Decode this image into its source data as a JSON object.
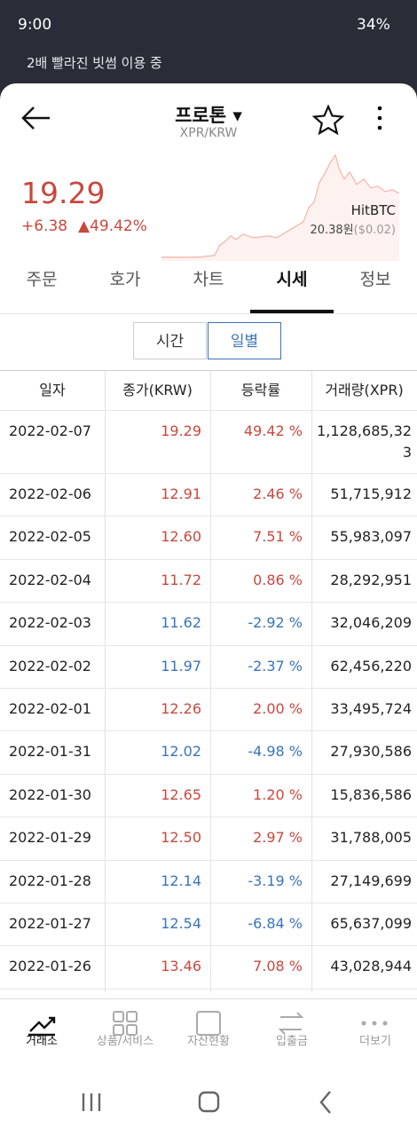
{
  "status": {
    "time": "9:00",
    "battery": "34%"
  },
  "banner": "2배 빨라진 빗썸 이용 중",
  "header": {
    "title": "프로톤",
    "subtitle": "XPR/KRW"
  },
  "price": {
    "last": "19.29",
    "change": "+6.38",
    "rate": "49.42%",
    "exchange": "HitBTC",
    "ref_price": "20.38원",
    "ref_diff": "($0.02)"
  },
  "tabs": [
    "주문",
    "호가",
    "차트",
    "시세",
    "정보"
  ],
  "segments": [
    "시간",
    "일별"
  ],
  "table": {
    "headers": [
      "일자",
      "종가(KRW)",
      "등락률",
      "거래량(XPR)"
    ],
    "rows": [
      [
        "2022-02-07",
        "19.29",
        "49.42 %",
        "1,128,685,323"
      ],
      [
        "2022-02-06",
        "12.91",
        "2.46 %",
        "51,715,912"
      ],
      [
        "2022-02-05",
        "12.60",
        "7.51 %",
        "55,983,097"
      ],
      [
        "2022-02-04",
        "11.72",
        "0.86 %",
        "28,292,951"
      ],
      [
        "2022-02-03",
        "11.62",
        "-2.92 %",
        "32,046,209"
      ],
      [
        "2022-02-02",
        "11.97",
        "-2.37 %",
        "62,456,220"
      ],
      [
        "2022-02-01",
        "12.26",
        "2.00 %",
        "33,495,724"
      ],
      [
        "2022-01-31",
        "12.02",
        "-4.98 %",
        "27,930,586"
      ],
      [
        "2022-01-30",
        "12.65",
        "1.20 %",
        "15,836,586"
      ],
      [
        "2022-01-29",
        "12.50",
        "2.97 %",
        "31,788,005"
      ],
      [
        "2022-01-28",
        "12.14",
        "-3.19 %",
        "27,149,699"
      ],
      [
        "2022-01-27",
        "12.54",
        "-6.84 %",
        "65,637,099"
      ],
      [
        "2022-01-26",
        "13.46",
        "7.08 %",
        "43,028,944"
      ]
    ]
  },
  "bottom_nav": [
    "거래소",
    "상품/서비스",
    "자산현황",
    "입출금",
    "더보기"
  ]
}
